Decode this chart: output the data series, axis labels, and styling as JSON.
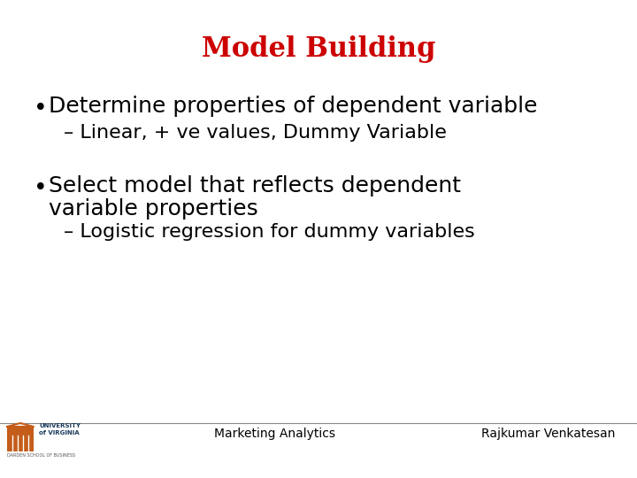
{
  "title": "Model Building",
  "title_color": "#cc0000",
  "title_fontsize": 22,
  "background_color": "#ffffff",
  "bullet1": "Determine properties of dependent variable",
  "sub1": "– Linear, + ve values, Dummy Variable",
  "bullet2_line1": "Select model that reflects dependent",
  "bullet2_line2": "variable properties",
  "sub2": "– Logistic regression for dummy variables",
  "bullet_fontsize": 18,
  "sub_fontsize": 16,
  "bullet_color": "#000000",
  "footer_left": "Marketing Analytics",
  "footer_right": "Rajkumar Venkatesan",
  "footer_fontsize": 10,
  "footer_color": "#000000",
  "separator_color": "#888888"
}
